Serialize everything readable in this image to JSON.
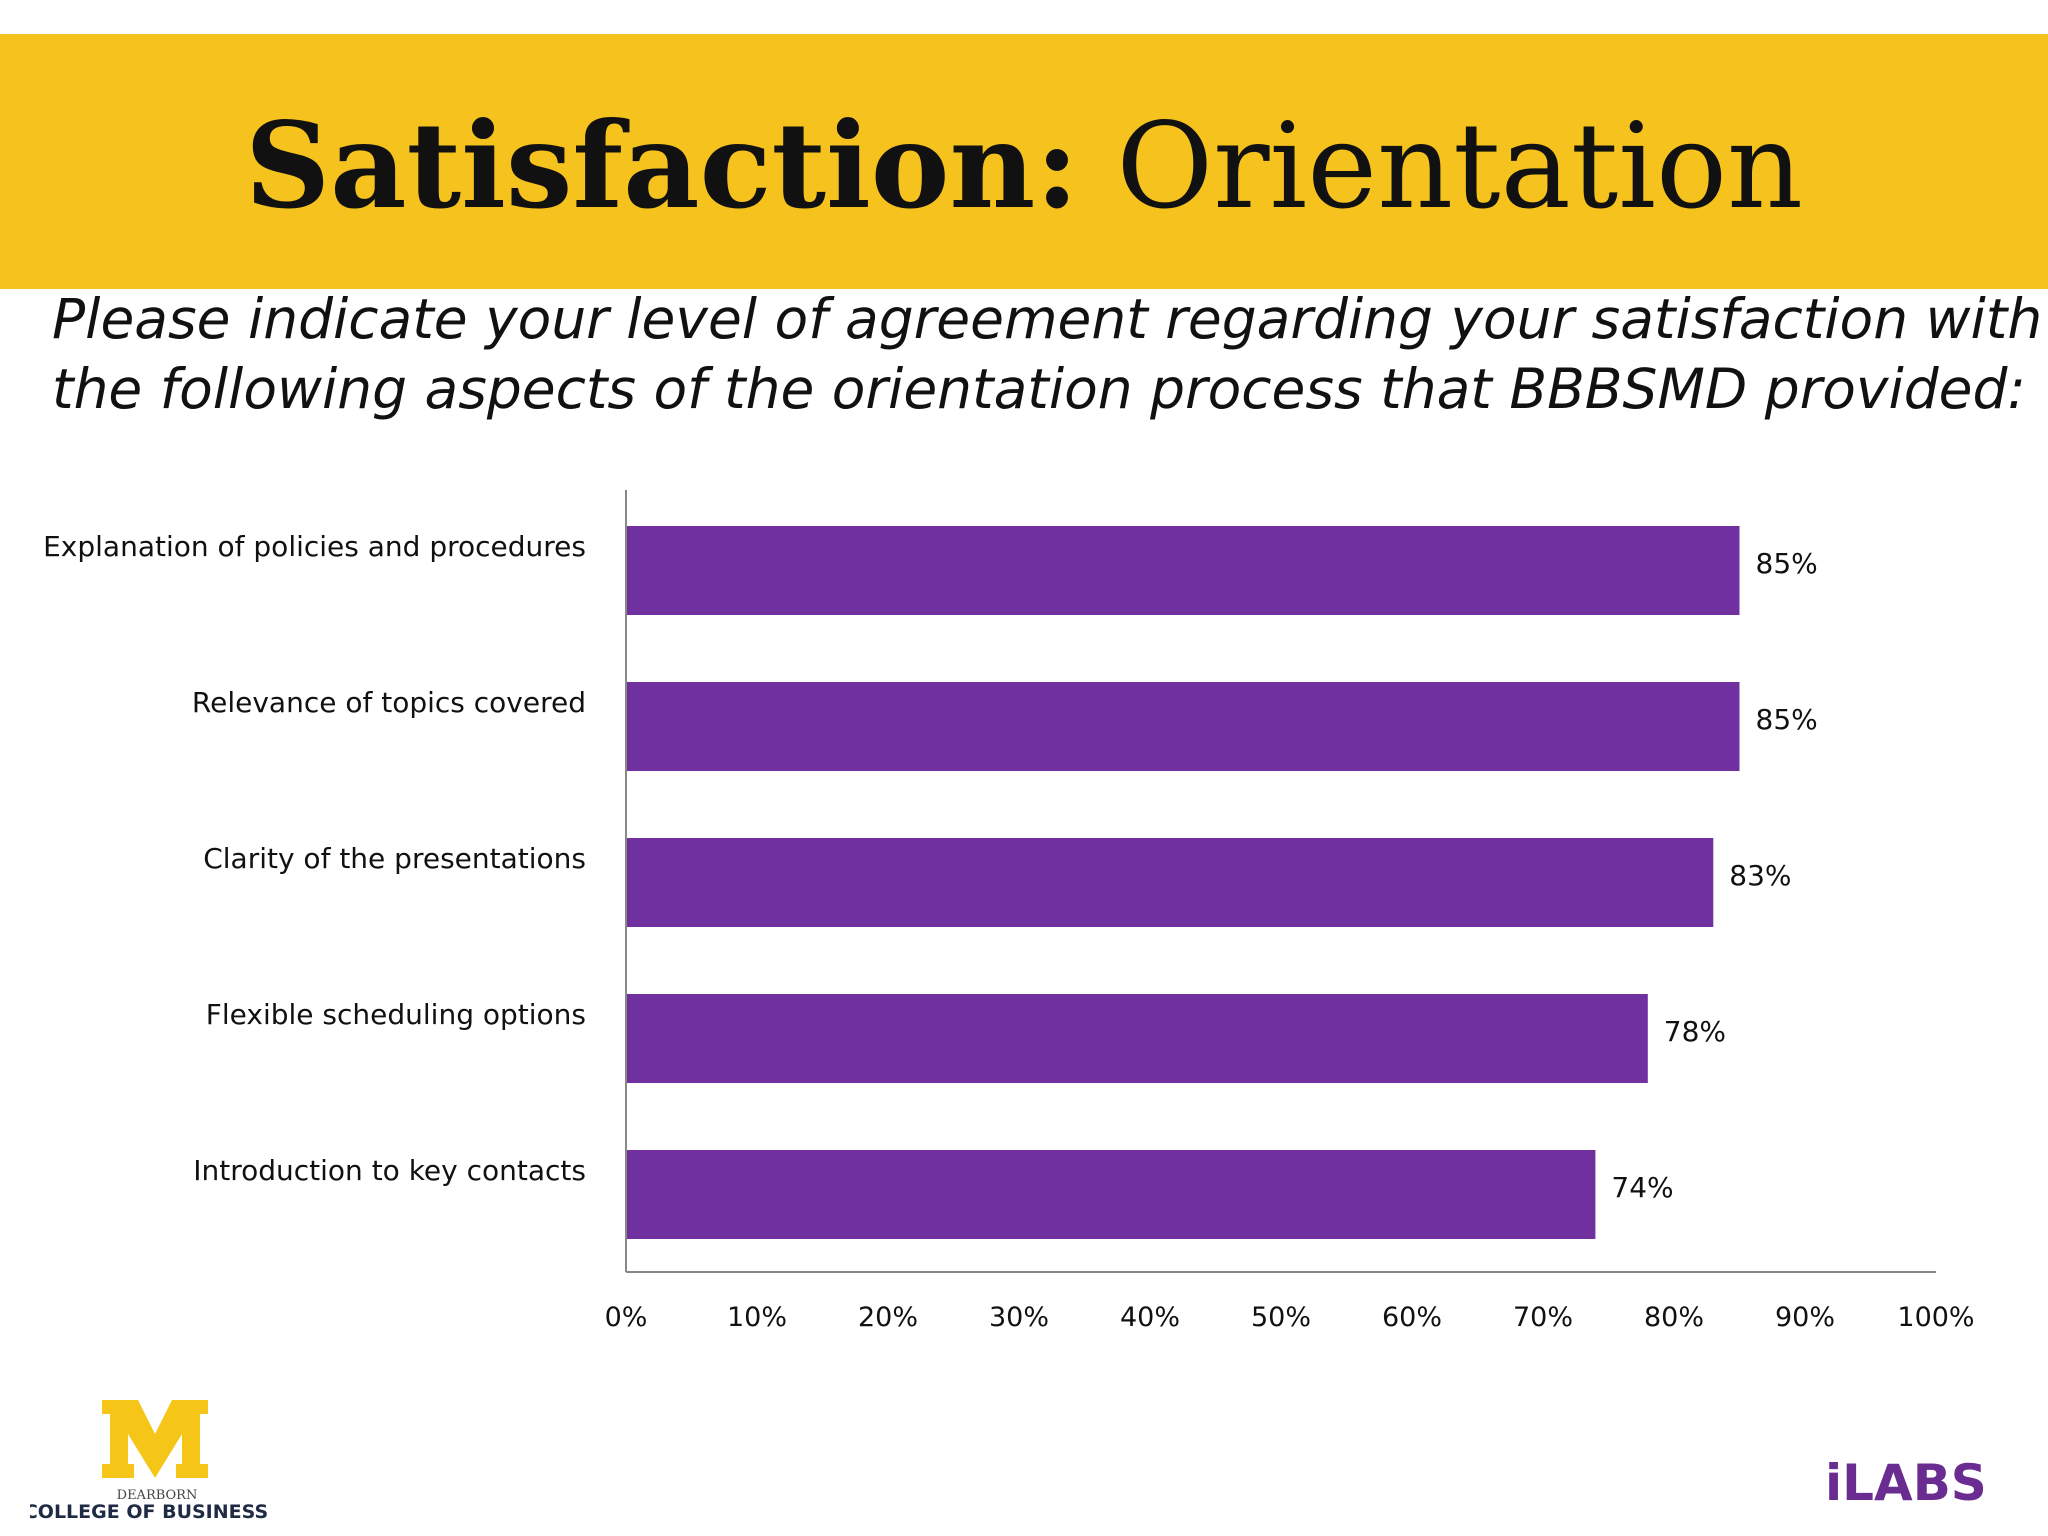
{
  "header": {
    "title_bold": "Satisfaction:",
    "title_rest": "Orientation",
    "banner_color": "#f5c21e"
  },
  "subtitle": {
    "line1": "Please indicate your level of agreement regarding your satisfaction with",
    "line2": "the following aspects of the orientation process that BBBSMD provided:"
  },
  "chart_data": {
    "type": "bar",
    "orientation": "horizontal",
    "categories": [
      "Explanation of policies and procedures",
      "Relevance of topics covered",
      "Clarity of the presentations",
      "Flexible scheduling options",
      "Introduction to key contacts"
    ],
    "values": [
      85,
      85,
      83,
      78,
      74
    ],
    "data_labels": [
      "85%",
      "85%",
      "83%",
      "78%",
      "74%"
    ],
    "xlim": [
      0,
      100
    ],
    "x_ticks": [
      "0%",
      "10%",
      "20%",
      "30%",
      "40%",
      "50%",
      "60%",
      "70%",
      "80%",
      "90%",
      "100%"
    ],
    "bar_color": "#7030a0",
    "grid": false
  },
  "footer": {
    "left_logo": {
      "icon": "university-m-logo",
      "line1": "DEARBORN",
      "line2": "COLLEGE OF BUSINESS",
      "color": "#f5c518"
    },
    "right_logo": {
      "icon": "ilabs-logo",
      "text": "iLABS",
      "color": "#6a2c91"
    }
  }
}
